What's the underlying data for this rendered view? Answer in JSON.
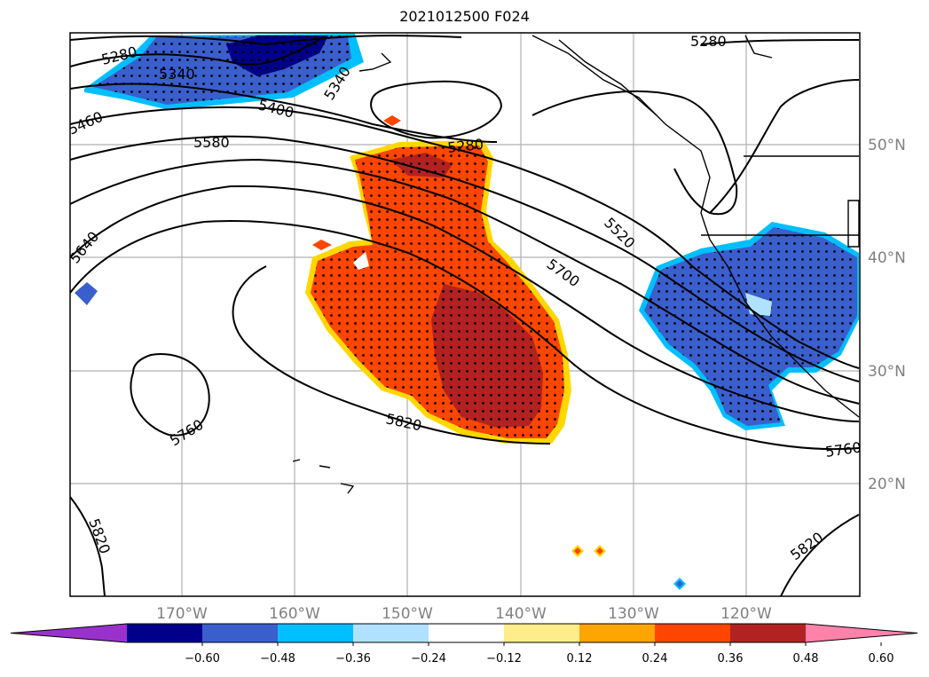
{
  "title": "2021012500 F024",
  "map": {
    "longitude_labels": [
      "170°W",
      "160°W",
      "150°W",
      "140°W",
      "130°W",
      "120°W"
    ],
    "latitude_labels": [
      "50°N",
      "40°N",
      "30°N",
      "20°N"
    ],
    "height_contour_labels": [
      "5280",
      "5340",
      "5340",
      "5280",
      "5400",
      "5460",
      "5580",
      "5280",
      "5520",
      "5640",
      "5700",
      "5760",
      "5820",
      "5760",
      "5820",
      "5820"
    ],
    "shading": {
      "positive_anomaly_color": "#ff4500",
      "strong_positive_color": "#b22222",
      "negative_anomaly_color": "#3a5fcd",
      "strong_negative_color": "#00008b",
      "stippling": "significant"
    }
  },
  "colorbar": {
    "colors": [
      "#9932cc",
      "#00008b",
      "#3a5fcd",
      "#00bfff",
      "#b0e2ff",
      "#ffffff",
      "#ffec8b",
      "#ffa500",
      "#ff4500",
      "#b22222",
      "#ff82ab"
    ],
    "tick_labels": [
      "−0.60",
      "−0.48",
      "−0.36",
      "−0.24",
      "−0.12",
      "0.12",
      "0.24",
      "0.36",
      "0.48",
      "0.60"
    ]
  }
}
